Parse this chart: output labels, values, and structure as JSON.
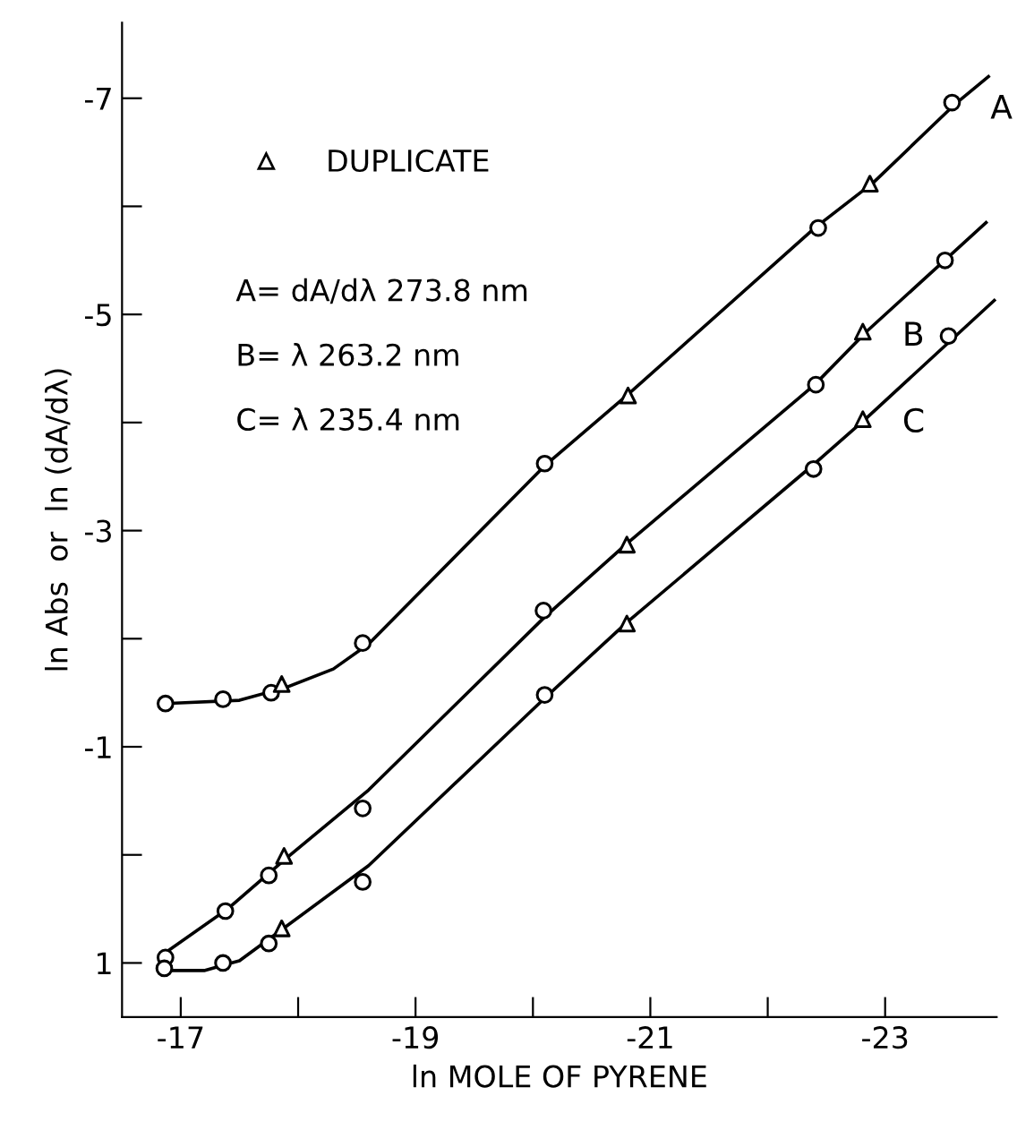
{
  "chart_data": {
    "type": "line",
    "xlabel": "ln MOLE OF PYRENE",
    "ylabel": "ln Abs  or  ln (dA/dλ)",
    "xlim": [
      -16.5,
      -23.95
    ],
    "ylim": [
      1.5,
      -7.7
    ],
    "xticks": [
      -17,
      {
        "value": -18,
        "label": null
      },
      -19,
      {
        "value": -20,
        "label": null
      },
      -21,
      {
        "value": -22,
        "label": null
      },
      -23
    ],
    "yticks": [
      -7,
      {
        "value": -6,
        "label": null
      },
      -5,
      {
        "value": -4,
        "label": null
      },
      -3,
      {
        "value": -2,
        "label": null
      },
      -1,
      {
        "value": 0,
        "label": null
      },
      1
    ],
    "grid": false,
    "legend": "top left",
    "annotations": [
      "A= dA/dλ 273.8 nm",
      "B= λ 263.2 nm",
      "C= λ 235.4 nm"
    ],
    "series": [
      {
        "name": "A",
        "color": "#000000",
        "marker": "none",
        "x": [
          -16.87,
          -17.5,
          -17.9,
          -18.3,
          -18.6,
          -20.1,
          -20.8,
          -22.4,
          -22.9,
          -23.6,
          -23.88
        ],
        "values": [
          -1.4,
          -1.43,
          -1.55,
          -1.72,
          -1.95,
          -3.6,
          -4.25,
          -5.8,
          -6.22,
          -6.95,
          -7.2
        ]
      },
      {
        "name": "B",
        "color": "#000000",
        "marker": "none",
        "x": [
          -16.85,
          -17.4,
          -17.9,
          -18.6,
          -20.1,
          -20.8,
          -22.4,
          -22.85,
          -23.86
        ],
        "values": [
          0.92,
          0.5,
          0.03,
          -0.6,
          -2.2,
          -2.88,
          -4.35,
          -4.85,
          -5.85
        ]
      },
      {
        "name": "C",
        "color": "#000000",
        "marker": "none",
        "x": [
          -16.85,
          -17.2,
          -17.5,
          -17.85,
          -18.6,
          -20.1,
          -20.8,
          -22.4,
          -22.85,
          -23.93
        ],
        "values": [
          1.07,
          1.07,
          0.98,
          0.7,
          0.1,
          -1.45,
          -2.15,
          -3.62,
          -4.05,
          -5.13
        ]
      },
      {
        "type": "scatter",
        "color": "#000000",
        "marker": "circle",
        "x": [
          -16.87,
          -17.36,
          -17.77,
          -18.55,
          -20.1,
          -22.43,
          -23.57,
          -16.87,
          -17.38,
          -17.75,
          -18.55,
          -20.09,
          -22.41,
          -23.51,
          -16.86,
          -17.36,
          -17.75,
          -18.55,
          -20.1,
          -22.39,
          -23.54
        ],
        "values": [
          -1.4,
          -1.44,
          -1.5,
          -1.96,
          -3.62,
          -5.8,
          -6.96,
          0.95,
          0.52,
          0.19,
          -0.43,
          -2.26,
          -4.35,
          -5.5,
          1.05,
          1.0,
          0.82,
          0.25,
          -1.48,
          -3.57,
          -4.8
        ]
      },
      {
        "name": "DUPLICATE",
        "type": "scatter",
        "color": "#000000",
        "marker": "triangle",
        "x": [
          -17.86,
          -20.81,
          -22.87,
          -17.88,
          -20.8,
          -22.81,
          -17.86,
          -20.8,
          -22.81
        ],
        "values": [
          -1.58,
          -4.25,
          -6.21,
          0.01,
          -2.87,
          -4.84,
          0.68,
          -2.14,
          -4.03
        ]
      }
    ]
  }
}
